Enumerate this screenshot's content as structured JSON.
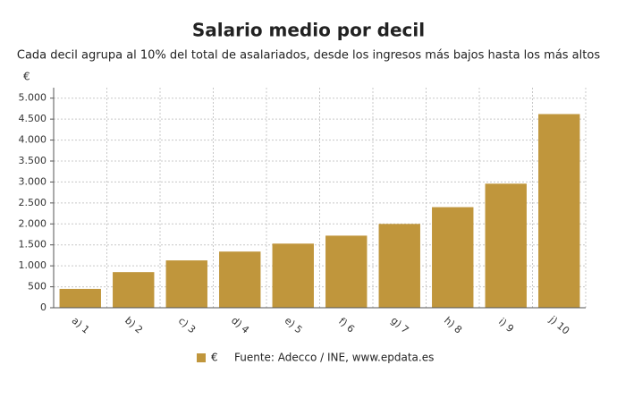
{
  "chart_data": {
    "type": "bar",
    "title": "Salario medio por decil",
    "subtitle": "Cada decil agrupa al 10% del total de asalariados, desde los ingresos más bajos hasta los más altos",
    "y_label": "€",
    "source": "Fuente: Adecco / INE, www.epdata.es",
    "categories": [
      "a) 1",
      "b) 2",
      "c) 3",
      "d) 4",
      "e) 5",
      "f) 6",
      "g) 7",
      "h) 8",
      "i) 9",
      "j) 10"
    ],
    "series": [
      {
        "name": "€",
        "color": "#c0963c",
        "values": [
          450,
          850,
          1130,
          1340,
          1530,
          1720,
          2000,
          2400,
          2960,
          4620
        ]
      }
    ],
    "ylim": [
      0,
      5250
    ],
    "yticks": [
      0,
      500,
      {
        "value": 1000,
        "label": "1.000"
      },
      {
        "value": 1500,
        "label": "1.500"
      },
      {
        "value": 2000,
        "label": "2.000"
      },
      {
        "value": 2500,
        "label": "2.500"
      },
      {
        "value": 3000,
        "label": "3.000"
      },
      {
        "value": 3500,
        "label": "3.500"
      },
      {
        "value": 4000,
        "label": "4.000"
      },
      {
        "value": 4500,
        "label": "4.500"
      },
      {
        "value": 5000,
        "label": "5.000"
      }
    ],
    "grid": true
  }
}
